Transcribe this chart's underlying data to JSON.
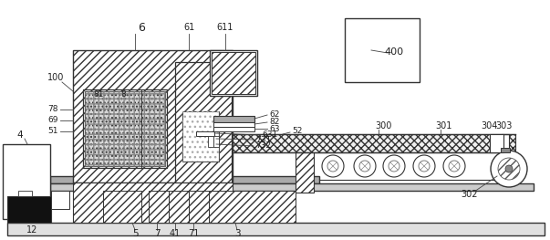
{
  "bg": "#ffffff",
  "lc": "#333333",
  "figsize": [
    6.03,
    2.63
  ],
  "dpi": 100
}
